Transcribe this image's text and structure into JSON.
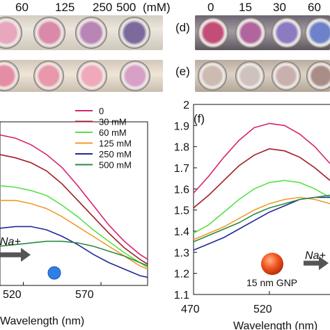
{
  "top_labels": {
    "left_concentrations": [
      "60",
      "125",
      "250",
      "500"
    ],
    "left_unit": "(mM)",
    "right_concentrations": [
      "0",
      "15",
      "30",
      "60"
    ]
  },
  "panel_labels": {
    "d": "(d)",
    "e": "(e)"
  },
  "photos": {
    "row1_left_wells": [
      "#e7a7bd",
      "#d98aa8",
      "#b985b5",
      "#7d6a9c"
    ],
    "row1_right_wells": [
      "#c24d77",
      "#b0659d",
      "#8d7ac0",
      "#6d82c9"
    ],
    "row2_left_wells": [
      "#e58ea3",
      "#e898aa",
      "#f0a9b8",
      "#d7a0c6"
    ],
    "row2_right_wells": [
      "#cdbab1",
      "#cfc1bb",
      "#c8b0ad",
      "#a98d87"
    ]
  },
  "chart_data": [
    {
      "type": "line",
      "panel": "",
      "xlabel": "Wavelength (nm)",
      "ylabel": "",
      "x_ticks": [
        "520",
        "570"
      ],
      "xlim": [
        505,
        600
      ],
      "ylim": [
        0,
        1
      ],
      "legend_position": "top-right",
      "annotation": "Na+",
      "series": [
        {
          "name": "0",
          "color": "#d6246e",
          "x": [
            505,
            515,
            525,
            535,
            545,
            555,
            565,
            575,
            585,
            595,
            600
          ],
          "y": [
            0.92,
            0.9,
            0.86,
            0.8,
            0.72,
            0.61,
            0.49,
            0.37,
            0.27,
            0.19,
            0.16
          ]
        },
        {
          "name": "30 mM",
          "color": "#a11b25",
          "x": [
            505,
            515,
            525,
            535,
            545,
            555,
            565,
            575,
            585,
            595,
            600
          ],
          "y": [
            0.8,
            0.78,
            0.75,
            0.7,
            0.62,
            0.52,
            0.42,
            0.32,
            0.23,
            0.16,
            0.13
          ]
        },
        {
          "name": "60 mM",
          "color": "#58e04a",
          "x": [
            505,
            515,
            525,
            535,
            545,
            555,
            565,
            575,
            585,
            595,
            600
          ],
          "y": [
            0.61,
            0.6,
            0.58,
            0.55,
            0.49,
            0.42,
            0.34,
            0.27,
            0.2,
            0.14,
            0.11
          ]
        },
        {
          "name": "125 mM",
          "color": "#f19a2c",
          "x": [
            505,
            515,
            525,
            535,
            545,
            555,
            565,
            575,
            585,
            595,
            600
          ],
          "y": [
            0.52,
            0.52,
            0.5,
            0.47,
            0.42,
            0.36,
            0.3,
            0.24,
            0.18,
            0.12,
            0.1
          ]
        },
        {
          "name": "250 mM",
          "color": "#1e2a96",
          "x": [
            505,
            515,
            525,
            535,
            545,
            555,
            565,
            575,
            585,
            595,
            600
          ],
          "y": [
            0.35,
            0.36,
            0.36,
            0.34,
            0.3,
            0.25,
            0.19,
            0.14,
            0.1,
            0.06,
            0.05
          ]
        },
        {
          "name": "500 mM",
          "color": "#2a8a43",
          "x": [
            505,
            515,
            525,
            535,
            545,
            555,
            565,
            575,
            585,
            595,
            600
          ],
          "y": [
            0.24,
            0.25,
            0.26,
            0.27,
            0.27,
            0.26,
            0.24,
            0.21,
            0.18,
            0.14,
            0.12
          ]
        }
      ]
    },
    {
      "type": "line",
      "panel": "(f)",
      "xlabel": "Wavelength (nm)",
      "ylabel": "",
      "x_ticks": [
        "470",
        "520"
      ],
      "y_ticks": [
        "1.1",
        "1.2",
        "1.3",
        "1.4",
        "1.5",
        "1.6",
        "1.7",
        "1.8",
        "1.9",
        "2"
      ],
      "xlim": [
        470,
        560
      ],
      "ylim": [
        1.1,
        2.0
      ],
      "annotation": "Na+",
      "particle_label": "15 nm GNP",
      "series": [
        {
          "color": "#d6246e",
          "x": [
            470,
            480,
            490,
            500,
            510,
            520,
            530,
            540,
            550,
            560
          ],
          "y": [
            1.58,
            1.66,
            1.75,
            1.83,
            1.89,
            1.91,
            1.9,
            1.86,
            1.8,
            1.72
          ]
        },
        {
          "color": "#a11b25",
          "x": [
            470,
            480,
            490,
            500,
            510,
            520,
            530,
            540,
            550,
            560
          ],
          "y": [
            1.51,
            1.57,
            1.64,
            1.71,
            1.76,
            1.79,
            1.78,
            1.75,
            1.7,
            1.64
          ]
        },
        {
          "color": "#58e04a",
          "x": [
            470,
            480,
            490,
            500,
            510,
            520,
            530,
            540,
            550,
            560
          ],
          "y": [
            1.39,
            1.43,
            1.49,
            1.55,
            1.6,
            1.63,
            1.64,
            1.63,
            1.6,
            1.56
          ]
        },
        {
          "color": "#f19a2c",
          "x": [
            470,
            480,
            490,
            500,
            510,
            520,
            530,
            540,
            550,
            560
          ],
          "y": [
            1.36,
            1.39,
            1.42,
            1.46,
            1.5,
            1.53,
            1.55,
            1.56,
            1.55,
            1.53
          ]
        },
        {
          "color": "#1e2a96",
          "x": [
            470,
            480,
            490,
            500,
            510,
            520,
            530,
            540,
            550,
            560
          ],
          "y": [
            1.31,
            1.34,
            1.37,
            1.41,
            1.45,
            1.49,
            1.52,
            1.55,
            1.56,
            1.56
          ]
        },
        {
          "color": "#2a8a43",
          "x": [
            470,
            480,
            490,
            500,
            510,
            520,
            530,
            540,
            550,
            560
          ],
          "y": [
            1.35,
            1.38,
            1.41,
            1.44,
            1.48,
            1.51,
            1.53,
            1.55,
            1.56,
            1.57
          ]
        }
      ]
    }
  ]
}
